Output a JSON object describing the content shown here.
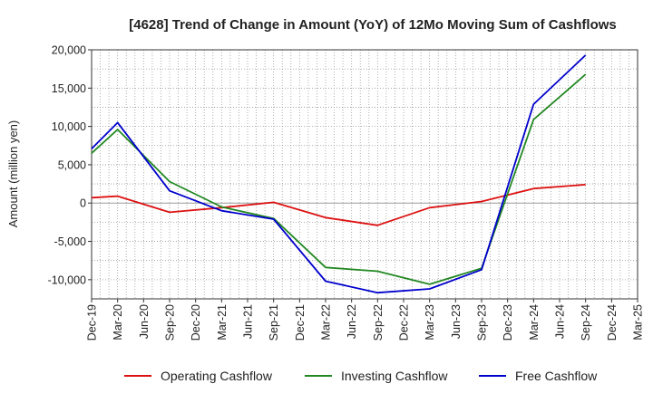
{
  "chart_data": {
    "type": "line",
    "title": "[4628]  Trend of Change in Amount (YoY) of 12Mo Moving Sum of Cashflows",
    "xlabel": "",
    "ylabel": "Amount (million yen)",
    "ylim": [
      -12500,
      20000
    ],
    "yticks": [
      20000,
      15000,
      10000,
      5000,
      0,
      -5000,
      -10000
    ],
    "ytick_labels": [
      "20,000",
      "15,000",
      "10,000",
      "5,000",
      "0",
      "-5,000",
      "-10,000"
    ],
    "categories": [
      "Dec-19",
      "Mar-20",
      "Jun-20",
      "Sep-20",
      "Dec-20",
      "Mar-21",
      "Jun-21",
      "Sep-21",
      "Dec-21",
      "Mar-22",
      "Jun-22",
      "Sep-22",
      "Dec-22",
      "Mar-23",
      "Jun-23",
      "Sep-23",
      "Dec-23",
      "Mar-24",
      "Jun-24",
      "Sep-24",
      "Dec-24",
      "Mar-25"
    ],
    "grid": true,
    "legend_position": "bottom",
    "series": [
      {
        "name": "Operating Cashflow",
        "color": "#dd1111",
        "values": [
          700,
          900,
          null,
          -1200,
          null,
          -600,
          null,
          100,
          null,
          -1900,
          null,
          -2900,
          null,
          -600,
          null,
          200,
          null,
          1900,
          null,
          2400,
          null,
          null
        ]
      },
      {
        "name": "Investing Cashflow",
        "color": "#228822",
        "values": [
          6500,
          9600,
          null,
          2800,
          null,
          -500,
          null,
          -2000,
          null,
          -8400,
          null,
          -8900,
          null,
          -10600,
          null,
          -8500,
          null,
          10900,
          null,
          16800,
          null,
          null
        ]
      },
      {
        "name": "Free Cashflow",
        "color": "#0000cc",
        "values": [
          7100,
          10500,
          null,
          1600,
          null,
          -1000,
          null,
          -2100,
          null,
          -10200,
          null,
          -11700,
          null,
          -11200,
          null,
          -8700,
          null,
          12900,
          null,
          19300,
          null,
          null
        ]
      }
    ]
  }
}
